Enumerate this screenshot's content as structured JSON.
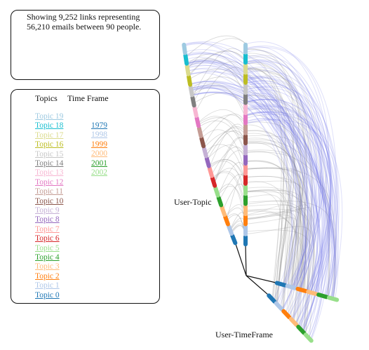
{
  "info": {
    "line1": "Showing 9,252 links representing",
    "line2": "56,210 emails between 90 people."
  },
  "legend": {
    "topics_header": "Topics",
    "timeframe_header": "Time Frame",
    "topics": [
      {
        "label": "Topic 19",
        "color": "#9ecae1"
      },
      {
        "label": "Topic 18",
        "color": "#17becf"
      },
      {
        "label": "Topic 17",
        "color": "#dbdb8d"
      },
      {
        "label": "Topic 16",
        "color": "#bcbd22"
      },
      {
        "label": "Topic 15",
        "color": "#c7c7c7"
      },
      {
        "label": "Topic 14",
        "color": "#7f7f7f"
      },
      {
        "label": "Topic 13",
        "color": "#f7b6d2"
      },
      {
        "label": "Topic 12",
        "color": "#e377c2"
      },
      {
        "label": "Topic 11",
        "color": "#c49c94"
      },
      {
        "label": "Topic 10",
        "color": "#8c564b"
      },
      {
        "label": "Topic 9",
        "color": "#c5b0d5"
      },
      {
        "label": "Topic 8",
        "color": "#9467bd"
      },
      {
        "label": "Topic 7",
        "color": "#ff9896"
      },
      {
        "label": "Topic 6",
        "color": "#d62728"
      },
      {
        "label": "Topic 5",
        "color": "#98df8a"
      },
      {
        "label": "Topic 4",
        "color": "#2ca02c"
      },
      {
        "label": "Topic 3",
        "color": "#ffbb78"
      },
      {
        "label": "Topic 2",
        "color": "#ff7f0e"
      },
      {
        "label": "Topic 1",
        "color": "#aec7e8"
      },
      {
        "label": "Topic 0",
        "color": "#1f77b4"
      }
    ],
    "timeframes": [
      {
        "label": "1979",
        "color": "#1f77b4"
      },
      {
        "label": "1998",
        "color": "#aec7e8"
      },
      {
        "label": "1999",
        "color": "#ff7f0e"
      },
      {
        "label": "2000",
        "color": "#ffbb78"
      },
      {
        "label": "2001",
        "color": "#2ca02c"
      },
      {
        "label": "2002",
        "color": "#98df8a"
      }
    ]
  },
  "axes": {
    "user_topic_label": "User-Topic",
    "user_timeframe_label": "User-TimeFrame"
  },
  "colors": {
    "link_gray": "#8c8c8c",
    "link_blue": "#6f74e6",
    "axis_line": "#111111"
  }
}
